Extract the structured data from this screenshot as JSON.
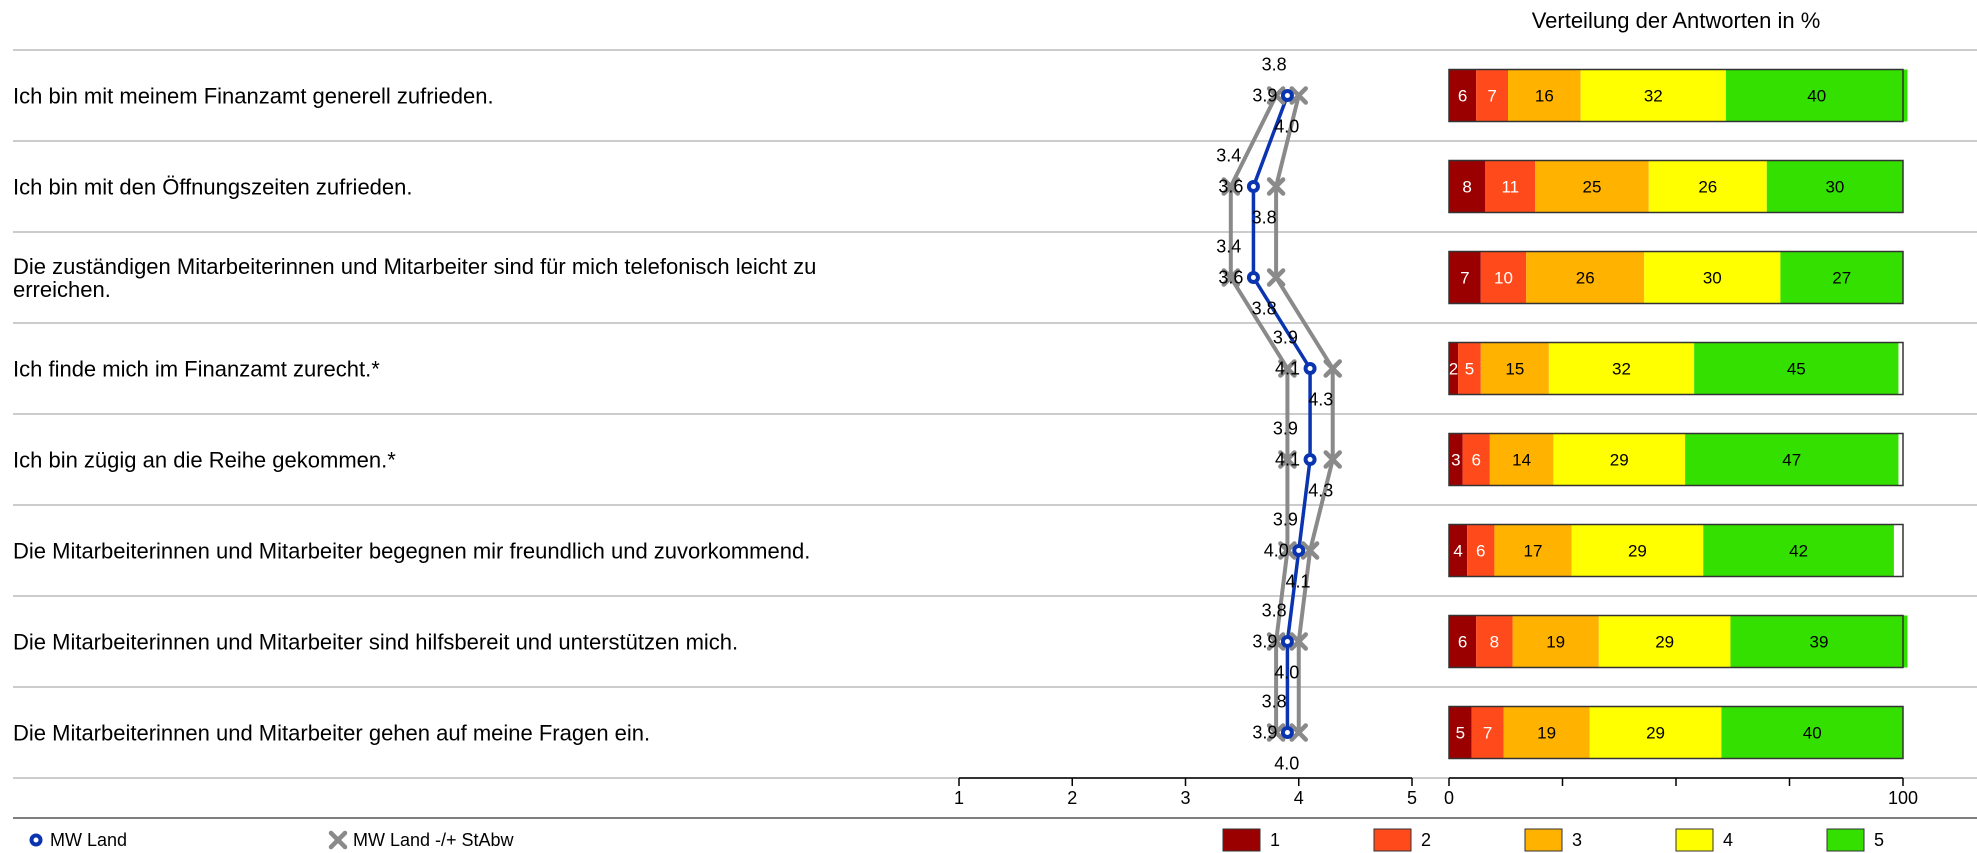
{
  "chart_data": {
    "type": "survey-profile",
    "distribution_title": "Verteilung der Antworten in %",
    "items": [
      {
        "question": [
          "Ich bin mit meinem Finanzamt generell zufrieden."
        ],
        "mean": 3.9,
        "mean_label": "3.9",
        "low": 3.8,
        "low_label": "3.8",
        "high": 4.0,
        "high_label": "4.0",
        "distribution": [
          6,
          7,
          16,
          32,
          40
        ]
      },
      {
        "question": [
          "Ich bin mit den Öffnungszeiten zufrieden."
        ],
        "mean": 3.6,
        "mean_label": "3.6",
        "low": 3.4,
        "low_label": "3.4",
        "high": 3.8,
        "high_label": "3.8",
        "distribution": [
          8,
          11,
          25,
          26,
          30
        ]
      },
      {
        "question": [
          "Die zuständigen Mitarbeiterinnen und Mitarbeiter sind für mich telefonisch leicht zu",
          "erreichen."
        ],
        "mean": 3.6,
        "mean_label": "3.6",
        "low": 3.4,
        "low_label": "3.4",
        "high": 3.8,
        "high_label": "3.8",
        "distribution": [
          7,
          10,
          26,
          30,
          27
        ]
      },
      {
        "question": [
          "Ich finde mich im Finanzamt zurecht.*"
        ],
        "mean": 4.1,
        "mean_label": "4.1",
        "low": 3.9,
        "low_label": "3.9",
        "high": 4.3,
        "high_label": "4.3",
        "distribution": [
          2,
          5,
          15,
          32,
          45
        ]
      },
      {
        "question": [
          "Ich bin zügig an die Reihe gekommen.*"
        ],
        "mean": 4.1,
        "mean_label": "4.1",
        "low": 3.9,
        "low_label": "3.9",
        "high": 4.3,
        "high_label": "4.3",
        "distribution": [
          3,
          6,
          14,
          29,
          47
        ]
      },
      {
        "question": [
          "Die Mitarbeiterinnen und Mitarbeiter begegnen mir freundlich und zuvorkommend."
        ],
        "mean": 4.0,
        "mean_label": "4.0",
        "low": 3.9,
        "low_label": "3.9",
        "high": 4.1,
        "high_label": "4.1",
        "distribution": [
          4,
          6,
          17,
          29,
          42
        ]
      },
      {
        "question": [
          "Die Mitarbeiterinnen und Mitarbeiter sind hilfsbereit und unterstützen mich."
        ],
        "mean": 3.9,
        "mean_label": "3.9",
        "low": 3.8,
        "low_label": "3.8",
        "high": 4.0,
        "high_label": "4.0",
        "distribution": [
          6,
          8,
          19,
          29,
          39
        ]
      },
      {
        "question": [
          "Die Mitarbeiterinnen und Mitarbeiter gehen auf meine Fragen ein."
        ],
        "mean": 3.9,
        "mean_label": "3.9",
        "low": 3.8,
        "low_label": "3.8",
        "high": 4.0,
        "high_label": "4.0",
        "distribution": [
          5,
          7,
          19,
          29,
          40
        ]
      }
    ],
    "mean_axis": {
      "range": [
        1,
        5
      ],
      "ticks": [
        "1",
        "2",
        "3",
        "4",
        "5"
      ]
    },
    "percent_axis": {
      "range": [
        0,
        100
      ],
      "ticks": [
        0,
        25,
        50,
        75,
        100
      ],
      "tick_labels": [
        "0",
        "",
        "",
        "",
        "100"
      ]
    },
    "legend": {
      "mean": "MW Land",
      "stdev": "MW Land -/+ StAbw",
      "categories": [
        "1",
        "2",
        "3",
        "4",
        "5"
      ]
    },
    "colors": {
      "mean_line": "#0b35b0",
      "stdev_line": "#8a8a8a",
      "categories": [
        "#9b0000",
        "#ff4a1c",
        "#ffb200",
        "#ffff00",
        "#33e000"
      ],
      "category_text": [
        "#ffffff",
        "#ffffff",
        "#000000",
        "#000000",
        "#000000"
      ]
    }
  }
}
